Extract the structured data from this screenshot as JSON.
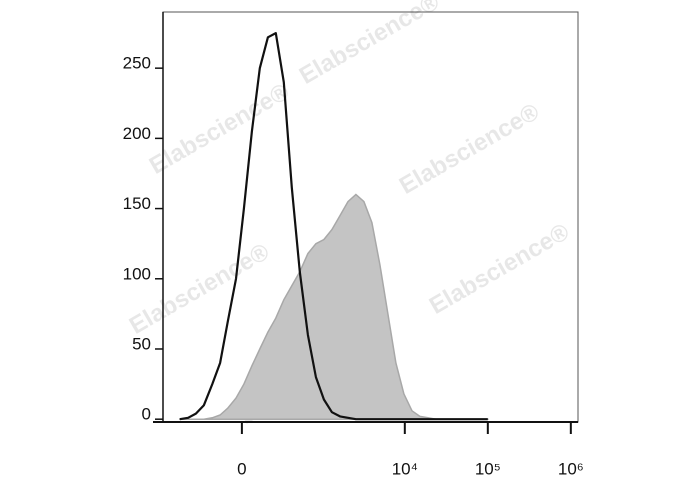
{
  "chart_data": {
    "type": "histogram",
    "watermark": "Elabscience®",
    "xscale": "asinh",
    "linear_width": 218,
    "xlim": [
      -960,
      1220000
    ],
    "xticks": [
      0,
      {
        "value": 10000,
        "label": "10⁴"
      },
      {
        "value": 100000,
        "label": "10⁵"
      },
      {
        "value": 1000000,
        "label": "10⁶"
      }
    ],
    "ylim": [
      -2,
      290
    ],
    "yticks": [
      0,
      50,
      100,
      150,
      200,
      250
    ],
    "x": [
      -590,
      -460,
      -360,
      -275,
      -200,
      -140,
      -87,
      -36,
      12,
      61,
      113,
      171,
      237,
      315,
      408,
      521,
      663,
      835,
      1050,
      1315,
      1650,
      2060,
      2570,
      3210,
      4010,
      5010,
      6260,
      7800,
      9750,
      12200,
      15200,
      19000,
      23700,
      100000
    ],
    "series": [
      {
        "color": "#c4c4c4",
        "values": [
          0,
          0,
          0,
          0,
          1,
          3,
          8,
          15,
          25,
          38,
          50,
          62,
          72,
          85,
          95,
          105,
          118,
          125,
          128,
          135,
          145,
          155,
          160,
          155,
          140,
          110,
          75,
          40,
          18,
          6,
          2,
          1,
          0,
          0
        ]
      },
      {
        "color": "#111111",
        "values": [
          0,
          1,
          4,
          10,
          25,
          40,
          70,
          100,
          150,
          205,
          250,
          272,
          275,
          240,
          165,
          105,
          60,
          30,
          14,
          5,
          2,
          1,
          0,
          0,
          0,
          0,
          0,
          0,
          0,
          0,
          0,
          0,
          0,
          0
        ]
      }
    ]
  }
}
